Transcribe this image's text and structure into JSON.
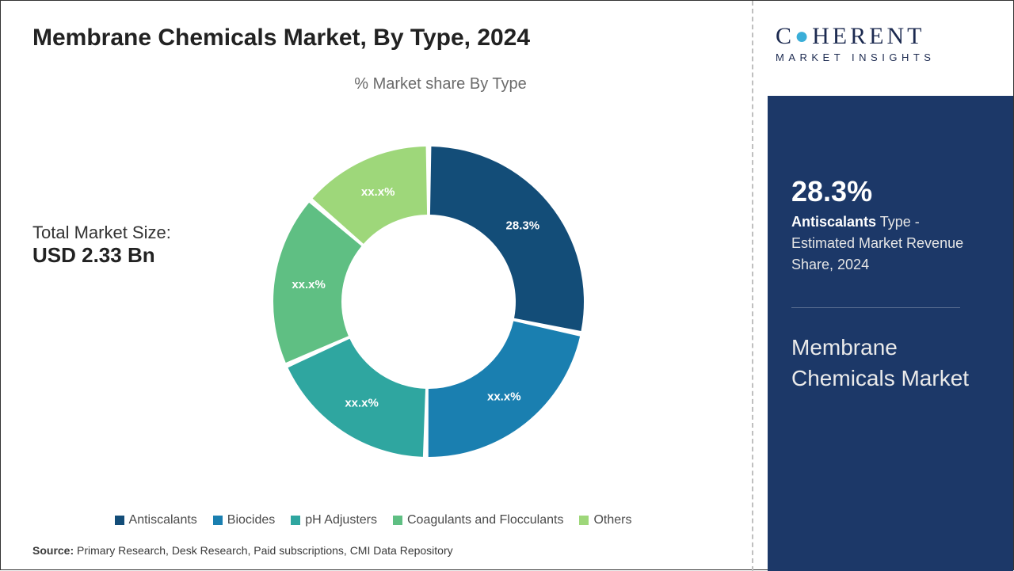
{
  "title": "Membrane Chemicals Market, By Type, 2024",
  "chart_subtitle": "% Market share By Type",
  "market_size": {
    "label": "Total Market Size:",
    "value": "USD 2.33 Bn"
  },
  "donut": {
    "type": "donut",
    "inner_radius_pct": 55,
    "outer_radius_pct": 98,
    "gap_deg": 2,
    "background": "#ffffff",
    "slices": [
      {
        "name": "Antiscalants",
        "label": "28.3%",
        "value": 28.3,
        "color": "#134d78"
      },
      {
        "name": "Biocides",
        "label": "xx.x%",
        "value": 22.0,
        "color": "#1a7fb0"
      },
      {
        "name": "pH Adjusters",
        "label": "xx.x%",
        "value": 18.0,
        "color": "#2fa6a0"
      },
      {
        "name": "Coagulants and Flocculants",
        "label": "xx.x%",
        "value": 18.0,
        "color": "#5fbf83"
      },
      {
        "name": "Others",
        "label": "xx.x%",
        "value": 13.7,
        "color": "#9ed77a"
      }
    ]
  },
  "legend": [
    {
      "label": "Antiscalants",
      "color": "#134d78"
    },
    {
      "label": "Biocides",
      "color": "#1a7fb0"
    },
    {
      "label": "pH Adjusters",
      "color": "#2fa6a0"
    },
    {
      "label": "Coagulants and Flocculants",
      "color": "#5fbf83"
    },
    {
      "label": "Others",
      "color": "#9ed77a"
    }
  ],
  "source": {
    "label": "Source:",
    "text": "Primary Research, Desk Research, Paid subscriptions, CMI Data Repository"
  },
  "logo": {
    "word1": "C",
    "word2": "HERENT",
    "sub": "MARKET INSIGHTS"
  },
  "right_stat": {
    "pct": "28.3%",
    "bold": "Antiscalants",
    "rest1": " Type -",
    "rest2": "Estimated Market Revenue Share, 2024"
  },
  "right_market_name": "Membrane Chemicals Market"
}
